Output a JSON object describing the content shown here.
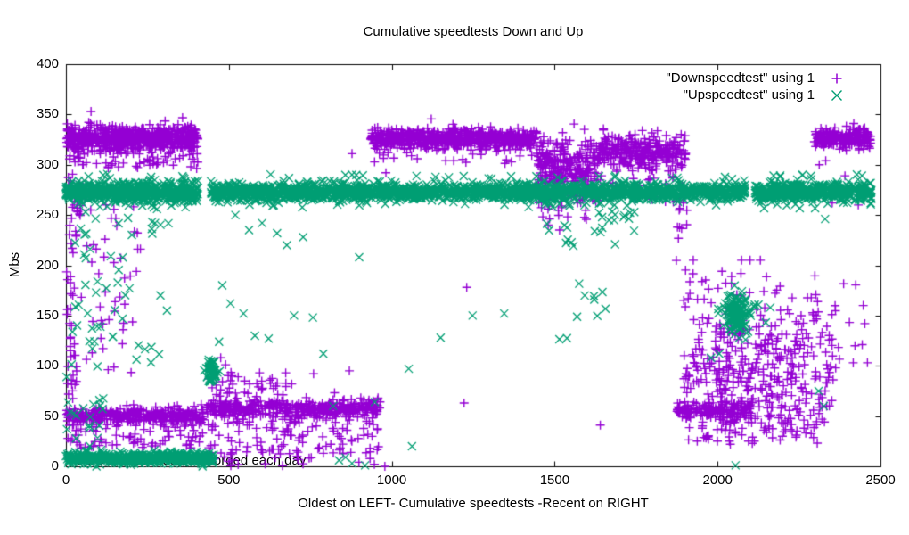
{
  "chart_data": {
    "type": "scatter",
    "title": "Cumulative speedtests Down and Up",
    "xlabel": "Oldest on LEFT- Cumulative speedtests -Recent on RIGHT",
    "ylabel": "Mbs",
    "xlim": [
      0,
      2500
    ],
    "ylim": [
      0,
      400
    ],
    "x_ticks": [
      0,
      500,
      1000,
      1500,
      2000,
      2500
    ],
    "y_ticks": [
      0,
      50,
      100,
      150,
      200,
      250,
      300,
      350,
      400
    ],
    "grid": false,
    "legend_position": "top-right-inside",
    "annotation": {
      "text": "Up/Down speedtest recorded each day",
      "x_data": 30,
      "y_data": 8
    },
    "legend": [
      {
        "label": "\"Downspeedtest\" using 1",
        "marker": "plus",
        "color": "#9400d3"
      },
      {
        "label": "\"Upspeedtest\" using 1",
        "marker": "cross",
        "color": "#009e73"
      }
    ],
    "seed": 11,
    "series": [
      {
        "name": "Downspeedtest",
        "marker": "plus",
        "color": "#9400d3",
        "clusters": [
          {
            "x": [
              2,
              405
            ],
            "ym": 326,
            "ys": 6,
            "n": 680
          },
          {
            "x": [
              2,
              405
            ],
            "y": [
              296,
              316
            ],
            "n": 55
          },
          {
            "x": [
              2,
              60
            ],
            "y": [
              240,
              332
            ],
            "n": 40
          },
          {
            "x": [
              2,
              34
            ],
            "y": [
              40,
              240
            ],
            "n": 45
          },
          {
            "x": [
              36,
              230
            ],
            "y": [
              90,
              265
            ],
            "n": 45
          },
          {
            "x": [
              2,
              425
            ],
            "ym": 50,
            "ys": 4,
            "n": 380
          },
          {
            "x": [
              2,
              425
            ],
            "y": [
              18,
              42
            ],
            "n": 70
          },
          {
            "x": [
              430,
              965
            ],
            "ym": 57,
            "ys": 4.5,
            "n": 420
          },
          {
            "x": [
              435,
              960
            ],
            "y": [
              12,
              48
            ],
            "n": 110
          },
          {
            "x": [
              435,
              705
            ],
            "y": [
              62,
              96
            ],
            "n": 45
          },
          {
            "x": [
              455,
              980
            ],
            "y": [
              0,
              14
            ],
            "n": 22
          },
          {
            "x": [
              933,
              1447
            ],
            "ym": 326,
            "ys": 5,
            "n": 700
          },
          {
            "x": [
              940,
              1445
            ],
            "y": [
              300,
              316
            ],
            "n": 18
          },
          {
            "x": [
              1447,
              1625
            ],
            "ym": 298,
            "ys": 15,
            "n": 270
          },
          {
            "x": [
              1447,
              1625
            ],
            "y": [
              245,
              272
            ],
            "n": 22
          },
          {
            "x": [
              1625,
              1902
            ],
            "ym": 313,
            "ys": 8,
            "n": 310
          },
          {
            "x": [
              1625,
              1902
            ],
            "y": [
              262,
              296
            ],
            "n": 35
          },
          {
            "x": [
              1872,
              1912
            ],
            "y": [
              195,
              268
            ],
            "n": 12
          },
          {
            "x": [
              2296,
              2470
            ],
            "ym": 326,
            "ys": 5,
            "n": 230
          },
          {
            "x": [
              1875,
              2105
            ],
            "ym": 55,
            "ys": 4,
            "n": 150
          },
          {
            "x": [
              1892,
              2355
            ],
            "ym": 112,
            "ys": 42,
            "n": 300,
            "clamp": [
              25,
              205
            ]
          },
          {
            "x": [
              1990,
              2280
            ],
            "ym": 92,
            "ys": 34,
            "n": 120,
            "clamp": [
              22,
              200
            ]
          },
          {
            "x": [
              1950,
              2310
            ],
            "y": [
              28,
              60
            ],
            "n": 60
          },
          {
            "x": [
              2355,
              2425
            ],
            "y": [
              90,
              185
            ],
            "n": 10
          }
        ],
        "points": [
          [
            77,
            353
          ],
          [
            878,
            311
          ],
          [
            1640,
            41
          ],
          [
            2447,
            160
          ],
          [
            2452,
            142
          ],
          [
            2444,
            121
          ],
          [
            2460,
            103
          ],
          [
            2312,
            300
          ],
          [
            2332,
            304
          ],
          [
            2352,
            262
          ],
          [
            2432,
            260
          ],
          [
            2391,
            289
          ],
          [
            2418,
            341
          ],
          [
            1222,
            63
          ],
          [
            1230,
            178
          ],
          [
            982,
            292
          ],
          [
            870,
            95
          ],
          [
            905,
            68
          ],
          [
            760,
            92
          ],
          [
            2306,
            23
          ],
          [
            475,
            108
          ],
          [
            490,
            101
          ],
          [
            448,
            99
          ],
          [
            1480,
            240
          ],
          [
            1515,
            235
          ]
        ]
      },
      {
        "name": "Upspeedtest",
        "marker": "cross",
        "color": "#009e73",
        "clusters": [
          {
            "x": [
              0,
              407
            ],
            "ym": 273,
            "ys": 4.5,
            "n": 620
          },
          {
            "x": [
              445,
              2085
            ],
            "ym": 273,
            "ys": 4,
            "n": 1900
          },
          {
            "x": [
              2115,
              2472
            ],
            "ym": 273,
            "ys": 4.5,
            "n": 450
          },
          {
            "x": [
              0,
              407
            ],
            "y": [
              259,
              291
            ],
            "n": 40
          },
          {
            "x": [
              445,
              2085
            ],
            "y": [
              259,
              291
            ],
            "n": 110
          },
          {
            "x": [
              2115,
              2472
            ],
            "y": [
              259,
              291
            ],
            "n": 35
          },
          {
            "x": [
              0,
              455
            ],
            "ym": 8,
            "ys": 2.6,
            "n": 560
          },
          {
            "x": [
              0,
              120
            ],
            "y": [
              20,
              68
            ],
            "n": 18
          },
          {
            "x": [
              0,
              210
            ],
            "y": [
              85,
              262
            ],
            "n": 42
          },
          {
            "xm": 447,
            "xs": 8,
            "ym": 95,
            "ys": 5,
            "n": 60
          },
          {
            "xm": 2062,
            "xs": 22,
            "ym": 152,
            "ys": 11,
            "n": 140
          },
          {
            "x": [
              1440,
              1760
            ],
            "y": [
              213,
              262
            ],
            "n": 28
          },
          {
            "x": [
              1500,
              1660
            ],
            "y": [
              125,
              185
            ],
            "n": 10
          },
          {
            "x": [
              210,
              340
            ],
            "y": [
              230,
              258
            ],
            "n": 8
          },
          {
            "x": [
              215,
              290
            ],
            "y": [
              95,
              125
            ],
            "n": 6
          }
        ],
        "points": [
          [
            480,
            180
          ],
          [
            505,
            162
          ],
          [
            520,
            250
          ],
          [
            545,
            152
          ],
          [
            562,
            235
          ],
          [
            580,
            130
          ],
          [
            602,
            242
          ],
          [
            622,
            127
          ],
          [
            648,
            232
          ],
          [
            678,
            220
          ],
          [
            700,
            150
          ],
          [
            728,
            228
          ],
          [
            758,
            148
          ],
          [
            790,
            112
          ],
          [
            820,
            60
          ],
          [
            838,
            6
          ],
          [
            858,
            9
          ],
          [
            878,
            3
          ],
          [
            900,
            208
          ],
          [
            918,
            1
          ],
          [
            948,
            64
          ],
          [
            1052,
            97
          ],
          [
            1062,
            20
          ],
          [
            1150,
            128
          ],
          [
            1248,
            150
          ],
          [
            1345,
            152
          ],
          [
            1420,
            258
          ],
          [
            1980,
            108
          ],
          [
            2005,
            112
          ],
          [
            2148,
            143
          ],
          [
            2162,
            158
          ],
          [
            2310,
            75
          ],
          [
            2326,
            60
          ],
          [
            2055,
            1
          ],
          [
            290,
            170
          ],
          [
            310,
            155
          ],
          [
            470,
            124
          ],
          [
            2330,
            246
          ],
          [
            2470,
            262
          ]
        ]
      }
    ]
  }
}
